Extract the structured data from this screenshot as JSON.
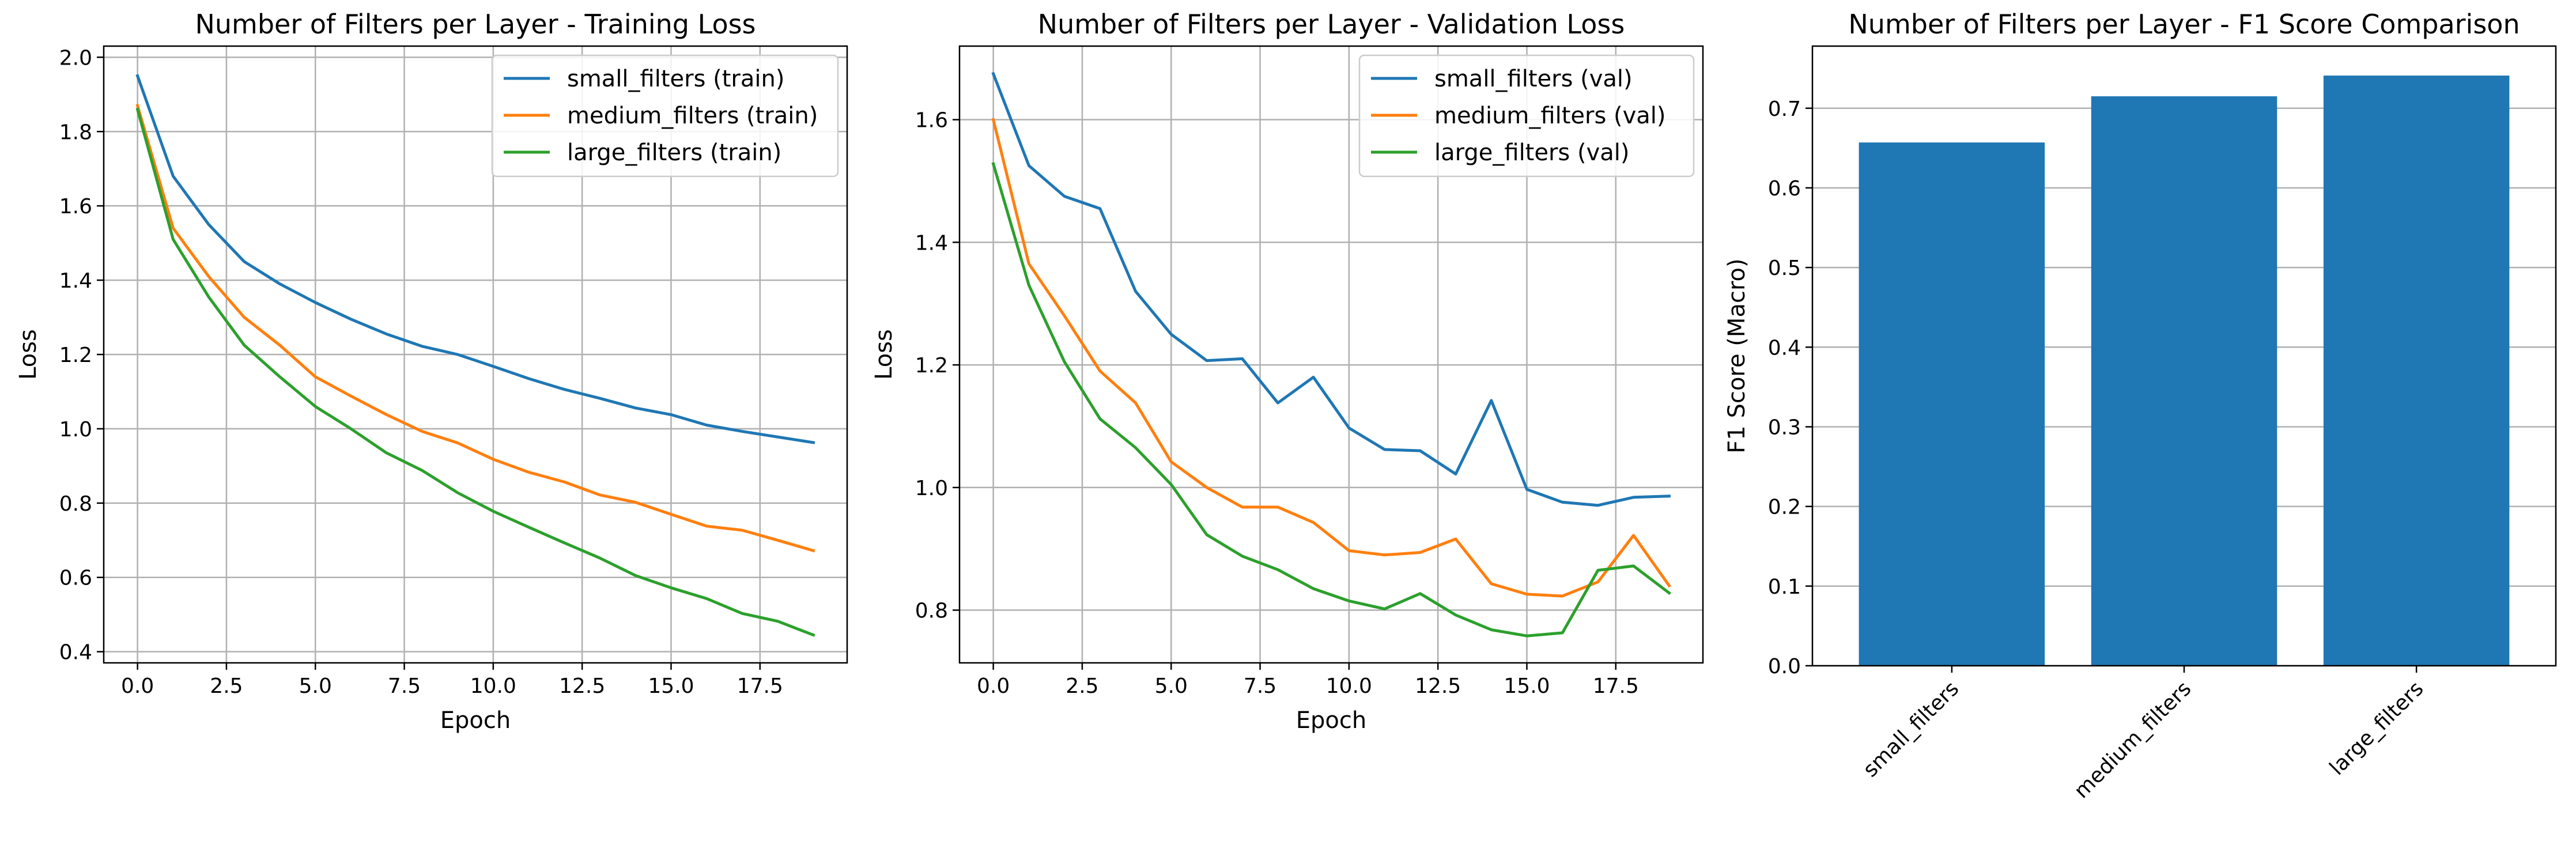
{
  "chart_data": [
    {
      "type": "line",
      "title": "Number of Filters per Layer - Training Loss",
      "xlabel": "Epoch",
      "ylabel": "Loss",
      "xlim": [
        -0.95,
        19.95
      ],
      "ylim": [
        0.37,
        2.03
      ],
      "xticks": [
        0.0,
        2.5,
        5.0,
        7.5,
        10.0,
        12.5,
        15.0,
        17.5
      ],
      "xtick_labels": [
        "0.0",
        "2.5",
        "5.0",
        "7.5",
        "10.0",
        "12.5",
        "15.0",
        "17.5"
      ],
      "yticks": [
        0.4,
        0.6,
        0.8,
        1.0,
        1.2,
        1.4,
        1.6,
        1.8,
        2.0
      ],
      "ytick_labels": [
        "0.4",
        "0.6",
        "0.8",
        "1.0",
        "1.2",
        "1.4",
        "1.6",
        "1.8",
        "2.0"
      ],
      "grid": true,
      "legend": "top-right",
      "x": [
        0,
        1,
        2,
        3,
        4,
        5,
        6,
        7,
        8,
        9,
        10,
        11,
        12,
        13,
        14,
        15,
        16,
        17,
        18,
        19
      ],
      "series": [
        {
          "name": "small_filters (train)",
          "color": "#1f77b4",
          "values": [
            1.95,
            1.68,
            1.55,
            1.45,
            1.39,
            1.34,
            1.295,
            1.255,
            1.222,
            1.2,
            1.168,
            1.135,
            1.106,
            1.082,
            1.056,
            1.038,
            1.01,
            0.993,
            0.978,
            0.963
          ]
        },
        {
          "name": "medium_filters (train)",
          "color": "#ff7f0e",
          "values": [
            1.87,
            1.54,
            1.41,
            1.3,
            1.225,
            1.14,
            1.088,
            1.038,
            0.993,
            0.962,
            0.918,
            0.883,
            0.857,
            0.822,
            0.802,
            0.77,
            0.738,
            0.727,
            0.7,
            0.672
          ]
        },
        {
          "name": "large_filters (train)",
          "color": "#2ca02c",
          "values": [
            1.86,
            1.51,
            1.355,
            1.225,
            1.14,
            1.06,
            1.0,
            0.935,
            0.888,
            0.828,
            0.778,
            0.735,
            0.693,
            0.652,
            0.605,
            0.572,
            0.543,
            0.503,
            0.482,
            0.445
          ]
        }
      ]
    },
    {
      "type": "line",
      "title": "Number of Filters per Layer - Validation Loss",
      "xlabel": "Epoch",
      "ylabel": "Loss",
      "xlim": [
        -0.95,
        19.95
      ],
      "ylim": [
        0.714,
        1.72
      ],
      "xticks": [
        0.0,
        2.5,
        5.0,
        7.5,
        10.0,
        12.5,
        15.0,
        17.5
      ],
      "xtick_labels": [
        "0.0",
        "2.5",
        "5.0",
        "7.5",
        "10.0",
        "12.5",
        "15.0",
        "17.5"
      ],
      "yticks": [
        0.8,
        1.0,
        1.2,
        1.4,
        1.6
      ],
      "ytick_labels": [
        "0.8",
        "1.0",
        "1.2",
        "1.4",
        "1.6"
      ],
      "grid": true,
      "legend": "top-right",
      "x": [
        0,
        1,
        2,
        3,
        4,
        5,
        6,
        7,
        8,
        9,
        10,
        11,
        12,
        13,
        14,
        15,
        16,
        17,
        18,
        19
      ],
      "series": [
        {
          "name": "small_filters (val)",
          "color": "#1f77b4",
          "values": [
            1.675,
            1.525,
            1.475,
            1.455,
            1.32,
            1.25,
            1.207,
            1.21,
            1.138,
            1.18,
            1.097,
            1.062,
            1.06,
            1.022,
            1.142,
            0.997,
            0.976,
            0.971,
            0.984,
            0.986
          ]
        },
        {
          "name": "medium_filters (val)",
          "color": "#ff7f0e",
          "values": [
            1.6,
            1.365,
            1.28,
            1.19,
            1.138,
            1.042,
            1.0,
            0.968,
            0.968,
            0.943,
            0.897,
            0.89,
            0.894,
            0.916,
            0.843,
            0.826,
            0.823,
            0.846,
            0.922,
            0.84
          ]
        },
        {
          "name": "large_filters (val)",
          "color": "#2ca02c",
          "values": [
            1.528,
            1.33,
            1.205,
            1.112,
            1.065,
            1.005,
            0.923,
            0.888,
            0.866,
            0.835,
            0.815,
            0.802,
            0.827,
            0.792,
            0.768,
            0.758,
            0.763,
            0.865,
            0.872,
            0.828
          ]
        }
      ]
    },
    {
      "type": "bar",
      "title": "Number of Filters per Layer - F1 Score Comparison",
      "xlabel": "",
      "ylabel": "F1 Score (Macro)",
      "ylim": [
        0,
        0.778
      ],
      "yticks": [
        0.0,
        0.1,
        0.2,
        0.3,
        0.4,
        0.5,
        0.6,
        0.7
      ],
      "ytick_labels": [
        "0.0",
        "0.1",
        "0.2",
        "0.3",
        "0.4",
        "0.5",
        "0.6",
        "0.7"
      ],
      "grid": true,
      "grid_axis": "y",
      "color": "#1f77b4",
      "categories": [
        "small_filters",
        "medium_filters",
        "large_filters"
      ],
      "values": [
        0.657,
        0.715,
        0.741
      ]
    }
  ]
}
